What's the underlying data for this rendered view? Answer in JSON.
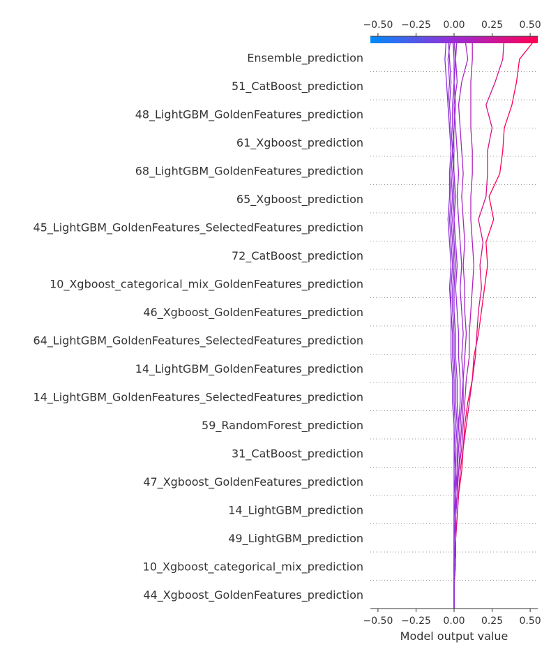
{
  "chart_data": {
    "type": "line",
    "xlabel": "Model output value",
    "xlim": [
      -0.55,
      0.55
    ],
    "tick_values": [
      -0.5,
      -0.25,
      0.0,
      0.25,
      0.5
    ],
    "tick_labels": [
      "−0.50",
      "−0.25",
      "0.00",
      "0.25",
      "0.50"
    ],
    "base_value": 0.0,
    "colorbar": {
      "low_color": "#008bfb",
      "high_color": "#ff0052"
    },
    "features": [
      "Ensemble_prediction",
      "51_CatBoost_prediction",
      "48_LightGBM_GoldenFeatures_prediction",
      "61_Xgboost_prediction",
      "68_LightGBM_GoldenFeatures_prediction",
      "65_Xgboost_prediction",
      "45_LightGBM_GoldenFeatures_SelectedFeatures_prediction",
      "72_CatBoost_prediction",
      "10_Xgboost_categorical_mix_GoldenFeatures_prediction",
      "46_Xgboost_GoldenFeatures_prediction",
      "64_LightGBM_GoldenFeatures_SelectedFeatures_prediction",
      "14_LightGBM_GoldenFeatures_prediction",
      "14_LightGBM_GoldenFeatures_SelectedFeatures_prediction",
      "59_RandomForest_prediction",
      "31_CatBoost_prediction",
      "47_Xgboost_GoldenFeatures_prediction",
      "14_LightGBM_prediction",
      "49_LightGBM_prediction",
      "10_Xgboost_categorical_mix_prediction",
      "44_Xgboost_GoldenFeatures_prediction"
    ],
    "series": [
      {
        "values": [
          0.0,
          0.0,
          0.01,
          0.01,
          0.02,
          0.03,
          0.05,
          0.06,
          0.07,
          0.09,
          0.12,
          0.13,
          0.16,
          0.18,
          0.2,
          0.22,
          0.21,
          0.26,
          0.23,
          0.3,
          0.32,
          0.33,
          0.38,
          0.41,
          0.43,
          0.55
        ]
      },
      {
        "values": [
          0.0,
          0.0,
          0.01,
          0.01,
          0.02,
          0.03,
          0.04,
          0.06,
          0.08,
          0.1,
          0.12,
          0.14,
          0.15,
          0.16,
          0.18,
          0.17,
          0.19,
          0.16,
          0.21,
          0.22,
          0.22,
          0.25,
          0.21,
          0.27,
          0.32,
          0.33
        ]
      },
      {
        "values": [
          0.0,
          0.0,
          0.0,
          0.01,
          0.01,
          0.02,
          0.03,
          0.05,
          0.06,
          0.07,
          0.08,
          0.1,
          0.1,
          0.11,
          0.12,
          0.13,
          0.12,
          0.11,
          0.11,
          0.12,
          0.12,
          0.11,
          0.11,
          0.11,
          0.12,
          0.12
        ]
      },
      {
        "values": [
          0.0,
          0.0,
          0.01,
          0.01,
          0.01,
          0.02,
          0.03,
          0.04,
          0.05,
          0.06,
          0.06,
          0.07,
          0.08,
          0.07,
          0.07,
          0.06,
          0.07,
          0.06,
          0.05,
          0.06,
          0.05,
          0.04,
          0.03,
          0.05,
          0.09,
          0.07
        ]
      },
      {
        "values": [
          0.0,
          0.0,
          0.0,
          0.01,
          0.01,
          0.02,
          0.02,
          0.03,
          0.04,
          0.05,
          0.06,
          0.05,
          0.06,
          0.05,
          0.04,
          0.05,
          0.04,
          0.03,
          0.02,
          0.03,
          0.02,
          0.01,
          0.0,
          0.02,
          0.01,
          0.02
        ]
      },
      {
        "values": [
          0.0,
          0.0,
          0.0,
          0.0,
          0.01,
          0.01,
          0.02,
          0.02,
          0.03,
          0.04,
          0.04,
          0.03,
          0.03,
          0.02,
          0.01,
          0.02,
          0.01,
          0.0,
          0.01,
          0.0,
          -0.01,
          0.0,
          0.01,
          0.0,
          0.01,
          0.0
        ]
      },
      {
        "values": [
          0.0,
          0.0,
          0.0,
          0.01,
          0.01,
          0.01,
          0.02,
          0.02,
          0.03,
          0.02,
          0.02,
          0.01,
          0.01,
          0.0,
          0.0,
          0.01,
          0.0,
          -0.01,
          0.0,
          -0.01,
          0.0,
          -0.01,
          -0.01,
          0.0,
          0.0,
          -0.01
        ]
      },
      {
        "values": [
          0.0,
          0.0,
          0.0,
          0.0,
          0.0,
          0.01,
          0.01,
          0.01,
          0.02,
          0.01,
          0.01,
          0.0,
          0.0,
          -0.01,
          -0.01,
          0.0,
          -0.01,
          -0.02,
          -0.01,
          -0.02,
          -0.01,
          -0.02,
          -0.03,
          -0.02,
          -0.03,
          -0.04
        ]
      },
      {
        "values": [
          0.0,
          0.0,
          0.0,
          0.0,
          0.0,
          0.0,
          0.01,
          0.0,
          0.01,
          0.0,
          0.0,
          -0.01,
          -0.01,
          -0.02,
          -0.02,
          -0.01,
          -0.02,
          -0.03,
          -0.02,
          -0.03,
          -0.02,
          -0.03,
          -0.04,
          -0.03,
          -0.04,
          -0.02
        ]
      },
      {
        "values": [
          0.0,
          0.0,
          0.0,
          0.0,
          0.0,
          0.0,
          0.0,
          0.0,
          0.0,
          -0.01,
          -0.01,
          -0.02,
          -0.02,
          -0.02,
          -0.03,
          -0.02,
          -0.03,
          -0.04,
          -0.03,
          -0.03,
          -0.02,
          -0.03,
          -0.04,
          -0.05,
          -0.06,
          -0.05
        ]
      }
    ]
  }
}
